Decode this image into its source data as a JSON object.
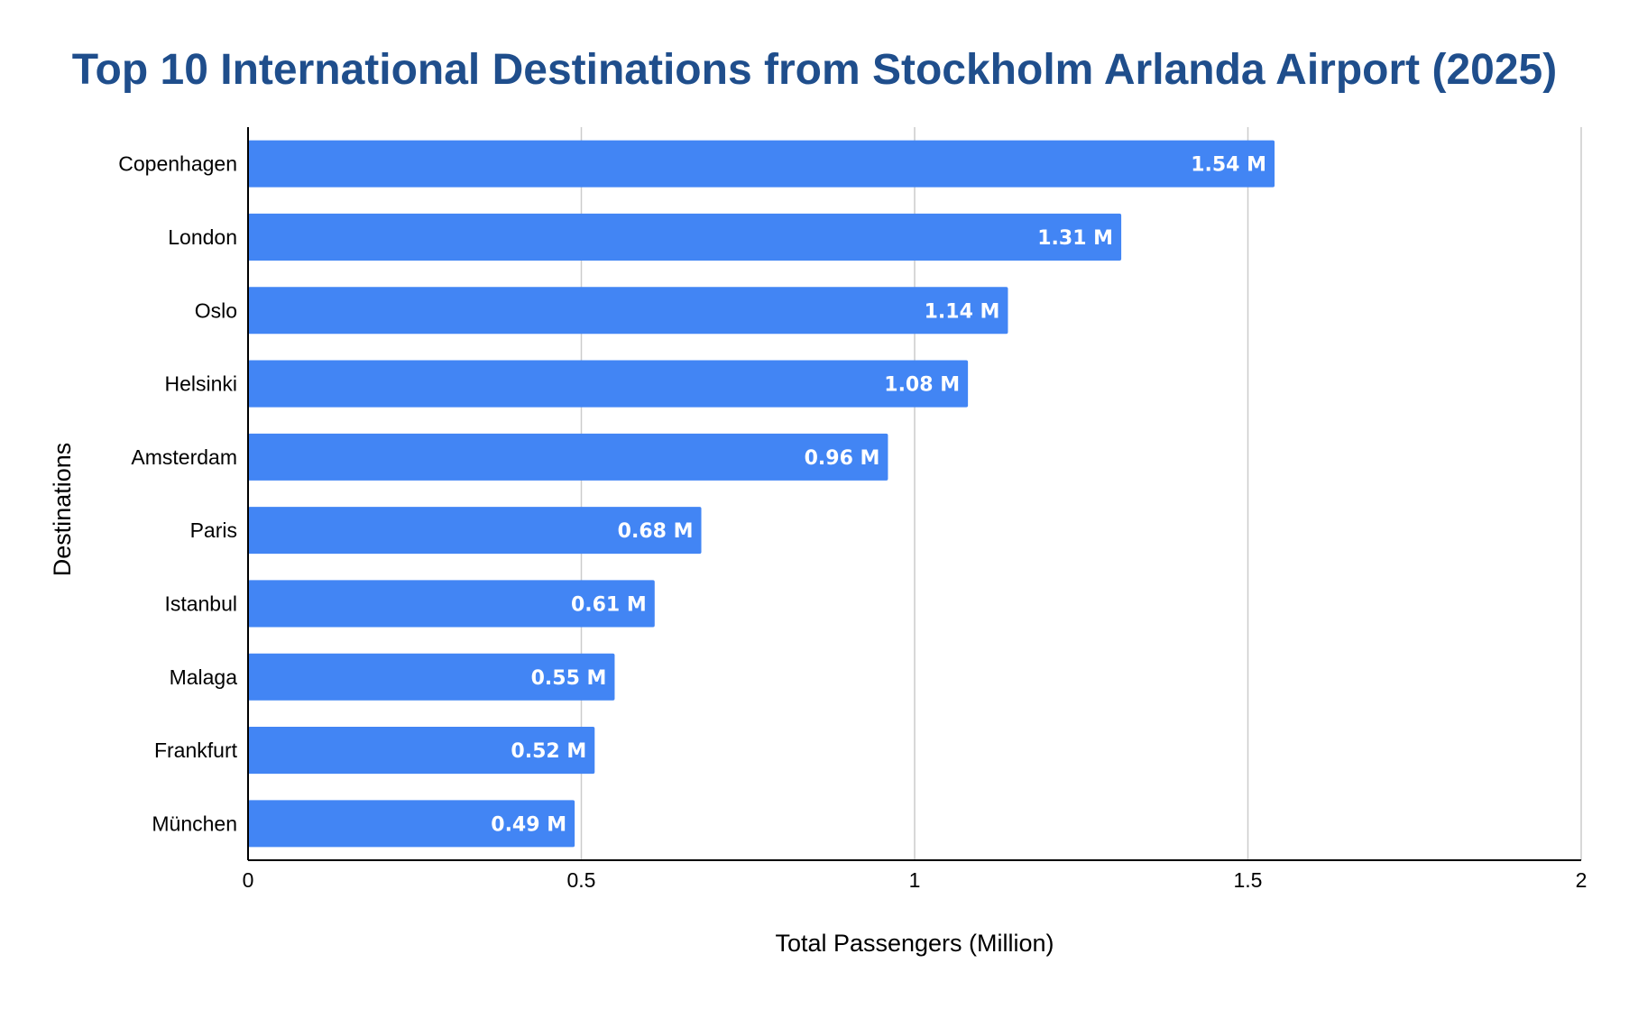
{
  "chart_data": {
    "type": "bar",
    "orientation": "horizontal",
    "title": "Top 10 International Destinations from Stockholm Arlanda Airport (2025)",
    "xlabel": "Total Passengers (Million)",
    "ylabel": "Destinations",
    "categories": [
      "Copenhagen",
      "London",
      "Oslo",
      "Helsinki",
      "Amsterdam",
      "Paris",
      "Istanbul",
      "Malaga",
      "Frankfurt",
      "München"
    ],
    "values": [
      1.54,
      1.31,
      1.14,
      1.08,
      0.96,
      0.68,
      0.61,
      0.55,
      0.52,
      0.49
    ],
    "data_labels": [
      "1.54 M",
      "1.31 M",
      "1.14 M",
      "1.08 M",
      "0.96 M",
      "0.68 M",
      "0.61 M",
      "0.55 M",
      "0.52 M",
      "0.49 M"
    ],
    "xlim": [
      0,
      2
    ],
    "xticks": [
      0,
      0.5,
      1,
      1.5,
      2
    ],
    "xtick_labels": [
      "0",
      "0.5",
      "1",
      "1.5",
      "2"
    ],
    "grid": true,
    "legend": "none",
    "colors": {
      "bar": "#4285f4",
      "title": "#1f4e8c",
      "grid": "#cccccc",
      "axis": "#000000",
      "data_label": "#ffffff"
    }
  }
}
